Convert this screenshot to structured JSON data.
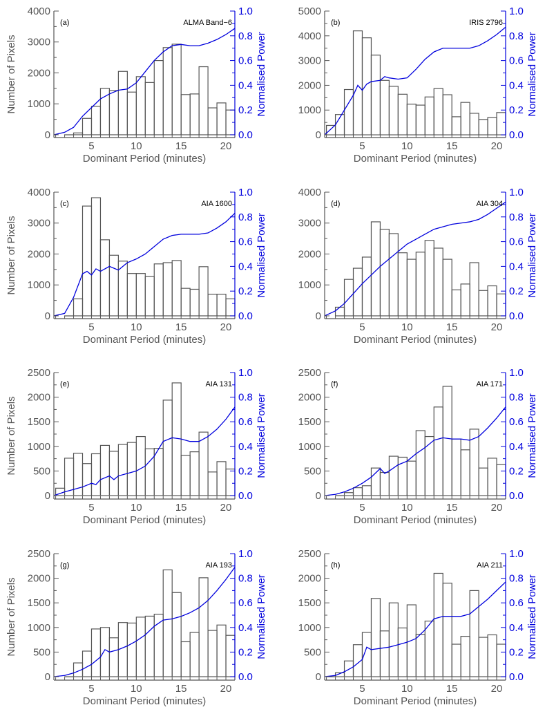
{
  "chart_data": [
    {
      "type": "bar",
      "panel_label": "(a)",
      "title": "ALMA Band−6",
      "xlabel": "Dominant Period (minutes)",
      "ylabel": "Number of Pixels",
      "y2label": "Normalised Power",
      "xlim": [
        0.8,
        21.0
      ],
      "ylim": [
        -90,
        4000
      ],
      "y2lim": [
        -0.0225,
        1.0
      ],
      "xticks": [
        5,
        10,
        15,
        20
      ],
      "yticks": [
        0,
        1000,
        2000,
        3000,
        4000
      ],
      "y2ticks": [
        0.0,
        0.2,
        0.4,
        0.6,
        0.8,
        1.0
      ],
      "bins": {
        "start": 2.0,
        "width": 1.0
      },
      "values": [
        0,
        60,
        530,
        920,
        1500,
        1430,
        2050,
        1380,
        1880,
        1690,
        2400,
        2820,
        2930,
        1300,
        1320,
        2200,
        870,
        1030,
        800
      ],
      "power": {
        "x": [
          0.8,
          2,
          3,
          4,
          5,
          6,
          7,
          8,
          9,
          10,
          11,
          12,
          13,
          14,
          15,
          16,
          17,
          18,
          19,
          20,
          21
        ],
        "y": [
          0.0,
          0.02,
          0.06,
          0.15,
          0.22,
          0.29,
          0.33,
          0.36,
          0.37,
          0.42,
          0.51,
          0.6,
          0.67,
          0.72,
          0.73,
          0.72,
          0.72,
          0.74,
          0.77,
          0.81,
          0.86
        ]
      }
    },
    {
      "type": "bar",
      "panel_label": "(b)",
      "title": "IRIS 2796",
      "xlabel": "Dominant Period (minutes)",
      "ylabel": "",
      "y2label": "Normalised Power",
      "xlim": [
        0.8,
        21.0
      ],
      "ylim": [
        -110,
        5000
      ],
      "y2lim": [
        -0.022,
        1.0
      ],
      "xticks": [
        5,
        10,
        15,
        20
      ],
      "yticks": [
        0,
        1000,
        2000,
        3000,
        4000,
        5000
      ],
      "y2ticks": [
        0.0,
        0.2,
        0.4,
        0.6,
        0.8,
        1.0
      ],
      "bins": {
        "start": 1.0,
        "width": 1.0
      },
      "values": [
        380,
        820,
        1830,
        4200,
        3920,
        3220,
        2200,
        1960,
        1640,
        1240,
        1200,
        1530,
        1870,
        1620,
        730,
        1310,
        870,
        620,
        700,
        900
      ],
      "power": {
        "x": [
          0.8,
          2,
          3,
          4,
          4.5,
          5,
          5.5,
          6,
          7,
          7.5,
          8,
          9,
          10,
          11,
          12,
          13,
          14,
          15,
          16,
          17,
          18,
          19,
          20,
          21
        ],
        "y": [
          0.0,
          0.08,
          0.2,
          0.32,
          0.4,
          0.36,
          0.41,
          0.43,
          0.44,
          0.47,
          0.46,
          0.45,
          0.46,
          0.53,
          0.61,
          0.67,
          0.7,
          0.7,
          0.7,
          0.7,
          0.72,
          0.76,
          0.81,
          0.87
        ]
      }
    },
    {
      "type": "bar",
      "panel_label": "(c)",
      "title": "AIA 1600",
      "xlabel": "Dominant Period (minutes)",
      "ylabel": "Number of Pixels",
      "y2label": "Normalised Power",
      "xlim": [
        0.8,
        21.0
      ],
      "ylim": [
        -90,
        4000
      ],
      "y2lim": [
        -0.0225,
        1.0
      ],
      "xticks": [
        5,
        10,
        15,
        20
      ],
      "yticks": [
        0,
        1000,
        2000,
        3000,
        4000
      ],
      "y2ticks": [
        0.0,
        0.2,
        0.4,
        0.6,
        0.8,
        1.0
      ],
      "bins": {
        "start": 2.0,
        "width": 1.0
      },
      "values": [
        0,
        550,
        3550,
        3820,
        2460,
        1960,
        1770,
        1370,
        1370,
        1270,
        1680,
        1720,
        1790,
        890,
        860,
        1590,
        700,
        700,
        550
      ],
      "power": {
        "x": [
          0.8,
          2,
          3,
          4,
          4.5,
          5,
          5.5,
          6,
          7,
          8,
          9,
          10,
          11,
          12,
          13,
          14,
          15,
          16,
          17,
          18,
          19,
          20,
          21
        ],
        "y": [
          0.0,
          0.02,
          0.15,
          0.34,
          0.36,
          0.33,
          0.38,
          0.36,
          0.4,
          0.37,
          0.43,
          0.46,
          0.5,
          0.56,
          0.62,
          0.65,
          0.66,
          0.66,
          0.66,
          0.67,
          0.71,
          0.76,
          0.83
        ]
      }
    },
    {
      "type": "bar",
      "panel_label": "(d)",
      "title": "AIA 304",
      "xlabel": "Dominant Period (minutes)",
      "ylabel": "",
      "y2label": "Normalised Power",
      "xlim": [
        0.8,
        21.0
      ],
      "ylim": [
        -90,
        4000
      ],
      "y2lim": [
        -0.0225,
        1.0
      ],
      "xticks": [
        5,
        10,
        15,
        20
      ],
      "yticks": [
        0,
        1000,
        2000,
        3000,
        4000
      ],
      "y2ticks": [
        0.0,
        0.2,
        0.4,
        0.6,
        0.8,
        1.0
      ],
      "bins": {
        "start": 2.0,
        "width": 1.0
      },
      "values": [
        280,
        1180,
        1540,
        1900,
        3040,
        2800,
        2660,
        2040,
        1830,
        2060,
        2440,
        2190,
        1830,
        840,
        1030,
        1720,
        820,
        970,
        710
      ],
      "power": {
        "x": [
          0.8,
          2,
          3,
          4,
          5,
          6,
          7,
          8,
          9,
          10,
          11,
          12,
          13,
          14,
          15,
          16,
          17,
          18,
          19,
          20,
          21
        ],
        "y": [
          0.0,
          0.04,
          0.1,
          0.18,
          0.26,
          0.33,
          0.4,
          0.46,
          0.52,
          0.58,
          0.62,
          0.66,
          0.7,
          0.72,
          0.74,
          0.75,
          0.76,
          0.78,
          0.82,
          0.87,
          0.92
        ]
      }
    },
    {
      "type": "bar",
      "panel_label": "(e)",
      "title": "AIA 131",
      "xlabel": "Dominant Period (minutes)",
      "ylabel": "Number of Pixels",
      "y2label": "Normalised Power",
      "xlim": [
        0.8,
        21.0
      ],
      "ylim": [
        -70,
        2500
      ],
      "y2lim": [
        -0.028,
        1.0
      ],
      "xticks": [
        5,
        10,
        15,
        20
      ],
      "yticks": [
        0,
        500,
        1000,
        1500,
        2000,
        2500
      ],
      "y2ticks": [
        0.0,
        0.2,
        0.4,
        0.6,
        0.8,
        1.0
      ],
      "bins": {
        "start": 1.0,
        "width": 1.0
      },
      "values": [
        150,
        760,
        860,
        650,
        850,
        1020,
        900,
        1040,
        1080,
        1200,
        950,
        960,
        1940,
        2290,
        820,
        890,
        1290,
        480,
        690,
        540
      ],
      "power": {
        "x": [
          0.8,
          2,
          3,
          4,
          5,
          5.5,
          6,
          7,
          7.5,
          8,
          9,
          10,
          11,
          12,
          13,
          14,
          15,
          16,
          17,
          18,
          19,
          20,
          21
        ],
        "y": [
          0.0,
          0.03,
          0.05,
          0.07,
          0.1,
          0.09,
          0.13,
          0.16,
          0.13,
          0.16,
          0.18,
          0.2,
          0.24,
          0.32,
          0.44,
          0.47,
          0.46,
          0.44,
          0.44,
          0.48,
          0.54,
          0.62,
          0.72
        ]
      }
    },
    {
      "type": "bar",
      "panel_label": "(f)",
      "title": "AIA 171",
      "xlabel": "Dominant Period (minutes)",
      "ylabel": "",
      "y2label": "Normalised Power",
      "xlim": [
        0.8,
        21.0
      ],
      "ylim": [
        -70,
        2500
      ],
      "y2lim": [
        -0.028,
        1.0
      ],
      "xticks": [
        5,
        10,
        15,
        20
      ],
      "yticks": [
        0,
        500,
        1000,
        1500,
        2000,
        2500
      ],
      "y2ticks": [
        0.0,
        0.2,
        0.4,
        0.6,
        0.8,
        1.0
      ],
      "bins": {
        "start": 2.0,
        "width": 1.0
      },
      "values": [
        0,
        60,
        160,
        200,
        560,
        470,
        800,
        780,
        700,
        1320,
        1200,
        1800,
        2220,
        1150,
        930,
        1350,
        560,
        760,
        630
      ],
      "power": {
        "x": [
          0.8,
          2,
          3,
          4,
          5,
          6,
          7,
          7.5,
          8,
          9,
          10,
          11,
          12,
          13,
          14,
          15,
          16,
          17,
          18,
          19,
          20,
          21
        ],
        "y": [
          0.0,
          0.01,
          0.03,
          0.06,
          0.1,
          0.15,
          0.22,
          0.18,
          0.2,
          0.25,
          0.28,
          0.34,
          0.39,
          0.45,
          0.47,
          0.46,
          0.46,
          0.45,
          0.48,
          0.55,
          0.63,
          0.72
        ]
      }
    },
    {
      "type": "bar",
      "panel_label": "(g)",
      "title": "AIA 193",
      "xlabel": "Dominant Period (minutes)",
      "ylabel": "Number of Pixels",
      "y2label": "Normalised Power",
      "xlim": [
        0.8,
        21.0
      ],
      "ylim": [
        -70,
        2500
      ],
      "y2lim": [
        -0.028,
        1.0
      ],
      "xticks": [
        5,
        10,
        15,
        20
      ],
      "yticks": [
        0,
        500,
        1000,
        1500,
        2000,
        2500
      ],
      "y2ticks": [
        0.0,
        0.2,
        0.4,
        0.6,
        0.8,
        1.0
      ],
      "bins": {
        "start": 2.0,
        "width": 1.0
      },
      "values": [
        0,
        280,
        520,
        970,
        1000,
        790,
        1100,
        1090,
        1210,
        1230,
        1270,
        2170,
        1710,
        710,
        900,
        2010,
        940,
        1050,
        840
      ],
      "power": {
        "x": [
          0.8,
          2,
          3,
          4,
          5,
          6,
          6.5,
          7,
          8,
          9,
          10,
          11,
          12,
          13,
          14,
          15,
          16,
          17,
          18,
          19,
          20,
          21
        ],
        "y": [
          0.0,
          0.01,
          0.03,
          0.06,
          0.1,
          0.16,
          0.22,
          0.2,
          0.22,
          0.25,
          0.29,
          0.34,
          0.41,
          0.46,
          0.47,
          0.49,
          0.52,
          0.56,
          0.62,
          0.7,
          0.79,
          0.89
        ]
      }
    },
    {
      "type": "bar",
      "panel_label": "(h)",
      "title": "AIA 211",
      "xlabel": "Dominant Period (minutes)",
      "ylabel": "",
      "y2label": "Normalised Power",
      "xlim": [
        0.8,
        21.0
      ],
      "ylim": [
        -70,
        2500
      ],
      "y2lim": [
        -0.028,
        1.0
      ],
      "xticks": [
        5,
        10,
        15,
        20
      ],
      "yticks": [
        0,
        500,
        1000,
        1500,
        2000,
        2500
      ],
      "y2ticks": [
        0.0,
        0.2,
        0.4,
        0.6,
        0.8,
        1.0
      ],
      "bins": {
        "start": 1.0,
        "width": 1.0
      },
      "values": [
        0,
        80,
        320,
        650,
        900,
        1590,
        930,
        1500,
        990,
        1460,
        860,
        1130,
        2100,
        1900,
        660,
        820,
        1750,
        800,
        850,
        660
      ],
      "power": {
        "x": [
          0.8,
          2,
          3,
          4,
          5,
          5.5,
          6,
          7,
          8,
          9,
          10,
          11,
          12,
          13,
          14,
          15,
          16,
          17,
          18,
          19,
          20,
          21
        ],
        "y": [
          0.0,
          0.01,
          0.04,
          0.08,
          0.14,
          0.24,
          0.22,
          0.23,
          0.24,
          0.26,
          0.28,
          0.31,
          0.38,
          0.47,
          0.49,
          0.49,
          0.49,
          0.51,
          0.57,
          0.63,
          0.7,
          0.77
        ]
      }
    }
  ],
  "colors": {
    "bar_stroke": "#555555",
    "power_line": "#0000dd",
    "left_axis": "#555555",
    "right_axis": "#0000dd"
  }
}
